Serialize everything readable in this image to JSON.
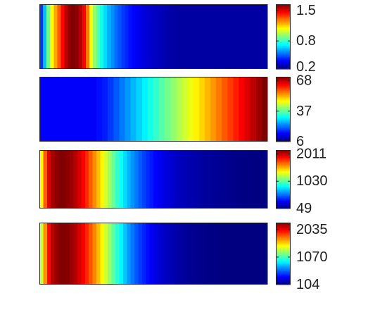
{
  "chart_data": [
    {
      "type": "heatmap",
      "title": "",
      "xlabel": "",
      "ylabel": "",
      "clim": [
        0.15,
        1.65
      ],
      "colormap": "jet",
      "colorbar": {
        "ticks": [
          1.5,
          0.8,
          0.2
        ],
        "tick_labels": [
          "1.5",
          "0.8",
          "0.2"
        ]
      },
      "values": [
        0.42,
        0.62,
        0.88,
        1.08,
        1.22,
        1.33,
        1.46,
        1.56,
        1.63,
        1.65,
        1.63,
        1.57,
        1.46,
        1.28,
        1.08,
        0.93,
        0.83,
        0.74,
        0.66,
        0.6,
        0.55,
        0.5,
        0.46,
        0.42,
        0.39,
        0.36,
        0.34,
        0.32,
        0.3,
        0.28,
        0.27,
        0.26,
        0.25,
        0.24,
        0.23,
        0.22,
        0.21,
        0.21,
        0.2,
        0.2,
        0.2,
        0.2,
        0.2,
        0.2,
        0.2,
        0.2,
        0.2,
        0.2,
        0.2,
        0.2,
        0.2,
        0.2,
        0.2,
        0.2,
        0.2,
        0.2,
        0.2,
        0.2,
        0.2,
        0.2,
        0.2,
        0.2,
        0.2,
        0.2
      ]
    },
    {
      "type": "heatmap",
      "title": "",
      "xlabel": "",
      "ylabel": "",
      "clim": [
        6,
        72
      ],
      "colormap": "jet",
      "colorbar": {
        "ticks": [
          68,
          37,
          6
        ],
        "tick_labels": [
          "68",
          "37",
          "6"
        ]
      },
      "values": [
        14,
        14,
        14,
        14,
        14,
        14,
        14,
        14,
        14,
        14,
        15,
        16,
        18,
        20,
        22,
        24,
        26,
        28,
        30,
        32,
        34,
        36,
        38,
        40,
        42,
        44,
        46,
        48,
        50,
        52,
        54,
        56,
        58,
        60,
        62,
        64,
        66,
        68,
        70,
        72
      ]
    },
    {
      "type": "heatmap",
      "title": "",
      "xlabel": "",
      "ylabel": "",
      "clim": [
        49,
        2150
      ],
      "colormap": "jet",
      "colorbar": {
        "ticks": [
          2011,
          1030,
          49
        ],
        "tick_labels": [
          "2011",
          "1030",
          "49"
        ]
      },
      "values": [
        1380,
        1700,
        1960,
        2060,
        2120,
        2150,
        2140,
        2120,
        2090,
        2040,
        1970,
        1890,
        1800,
        1700,
        1600,
        1490,
        1380,
        1270,
        1160,
        1050,
        950,
        860,
        770,
        690,
        620,
        560,
        500,
        450,
        400,
        360,
        320,
        290,
        260,
        240,
        220,
        200,
        180,
        170,
        160,
        150,
        140,
        130,
        120,
        110,
        105,
        100,
        95,
        90,
        85,
        80,
        75,
        70,
        65,
        60,
        58,
        56,
        54,
        52,
        50,
        50
      ]
    },
    {
      "type": "heatmap",
      "title": "",
      "xlabel": "",
      "ylabel": "",
      "clim": [
        104,
        2280
      ],
      "colormap": "jet",
      "colorbar": {
        "ticks": [
          2035,
          1070,
          104
        ],
        "tick_labels": [
          "2035",
          "1070",
          "104"
        ]
      },
      "values": [
        1350,
        1700,
        2000,
        2150,
        2230,
        2270,
        2280,
        2260,
        2220,
        2170,
        2100,
        2020,
        1930,
        1830,
        1720,
        1600,
        1480,
        1360,
        1240,
        1120,
        1010,
        900,
        800,
        710,
        630,
        560,
        500,
        450,
        400,
        360,
        320,
        290,
        260,
        240,
        220,
        200,
        185,
        170,
        160,
        150,
        140,
        135,
        130,
        125,
        120,
        116,
        112,
        110,
        108,
        106,
        105,
        104,
        104,
        104,
        104,
        104,
        104,
        104,
        104,
        104
      ]
    }
  ]
}
